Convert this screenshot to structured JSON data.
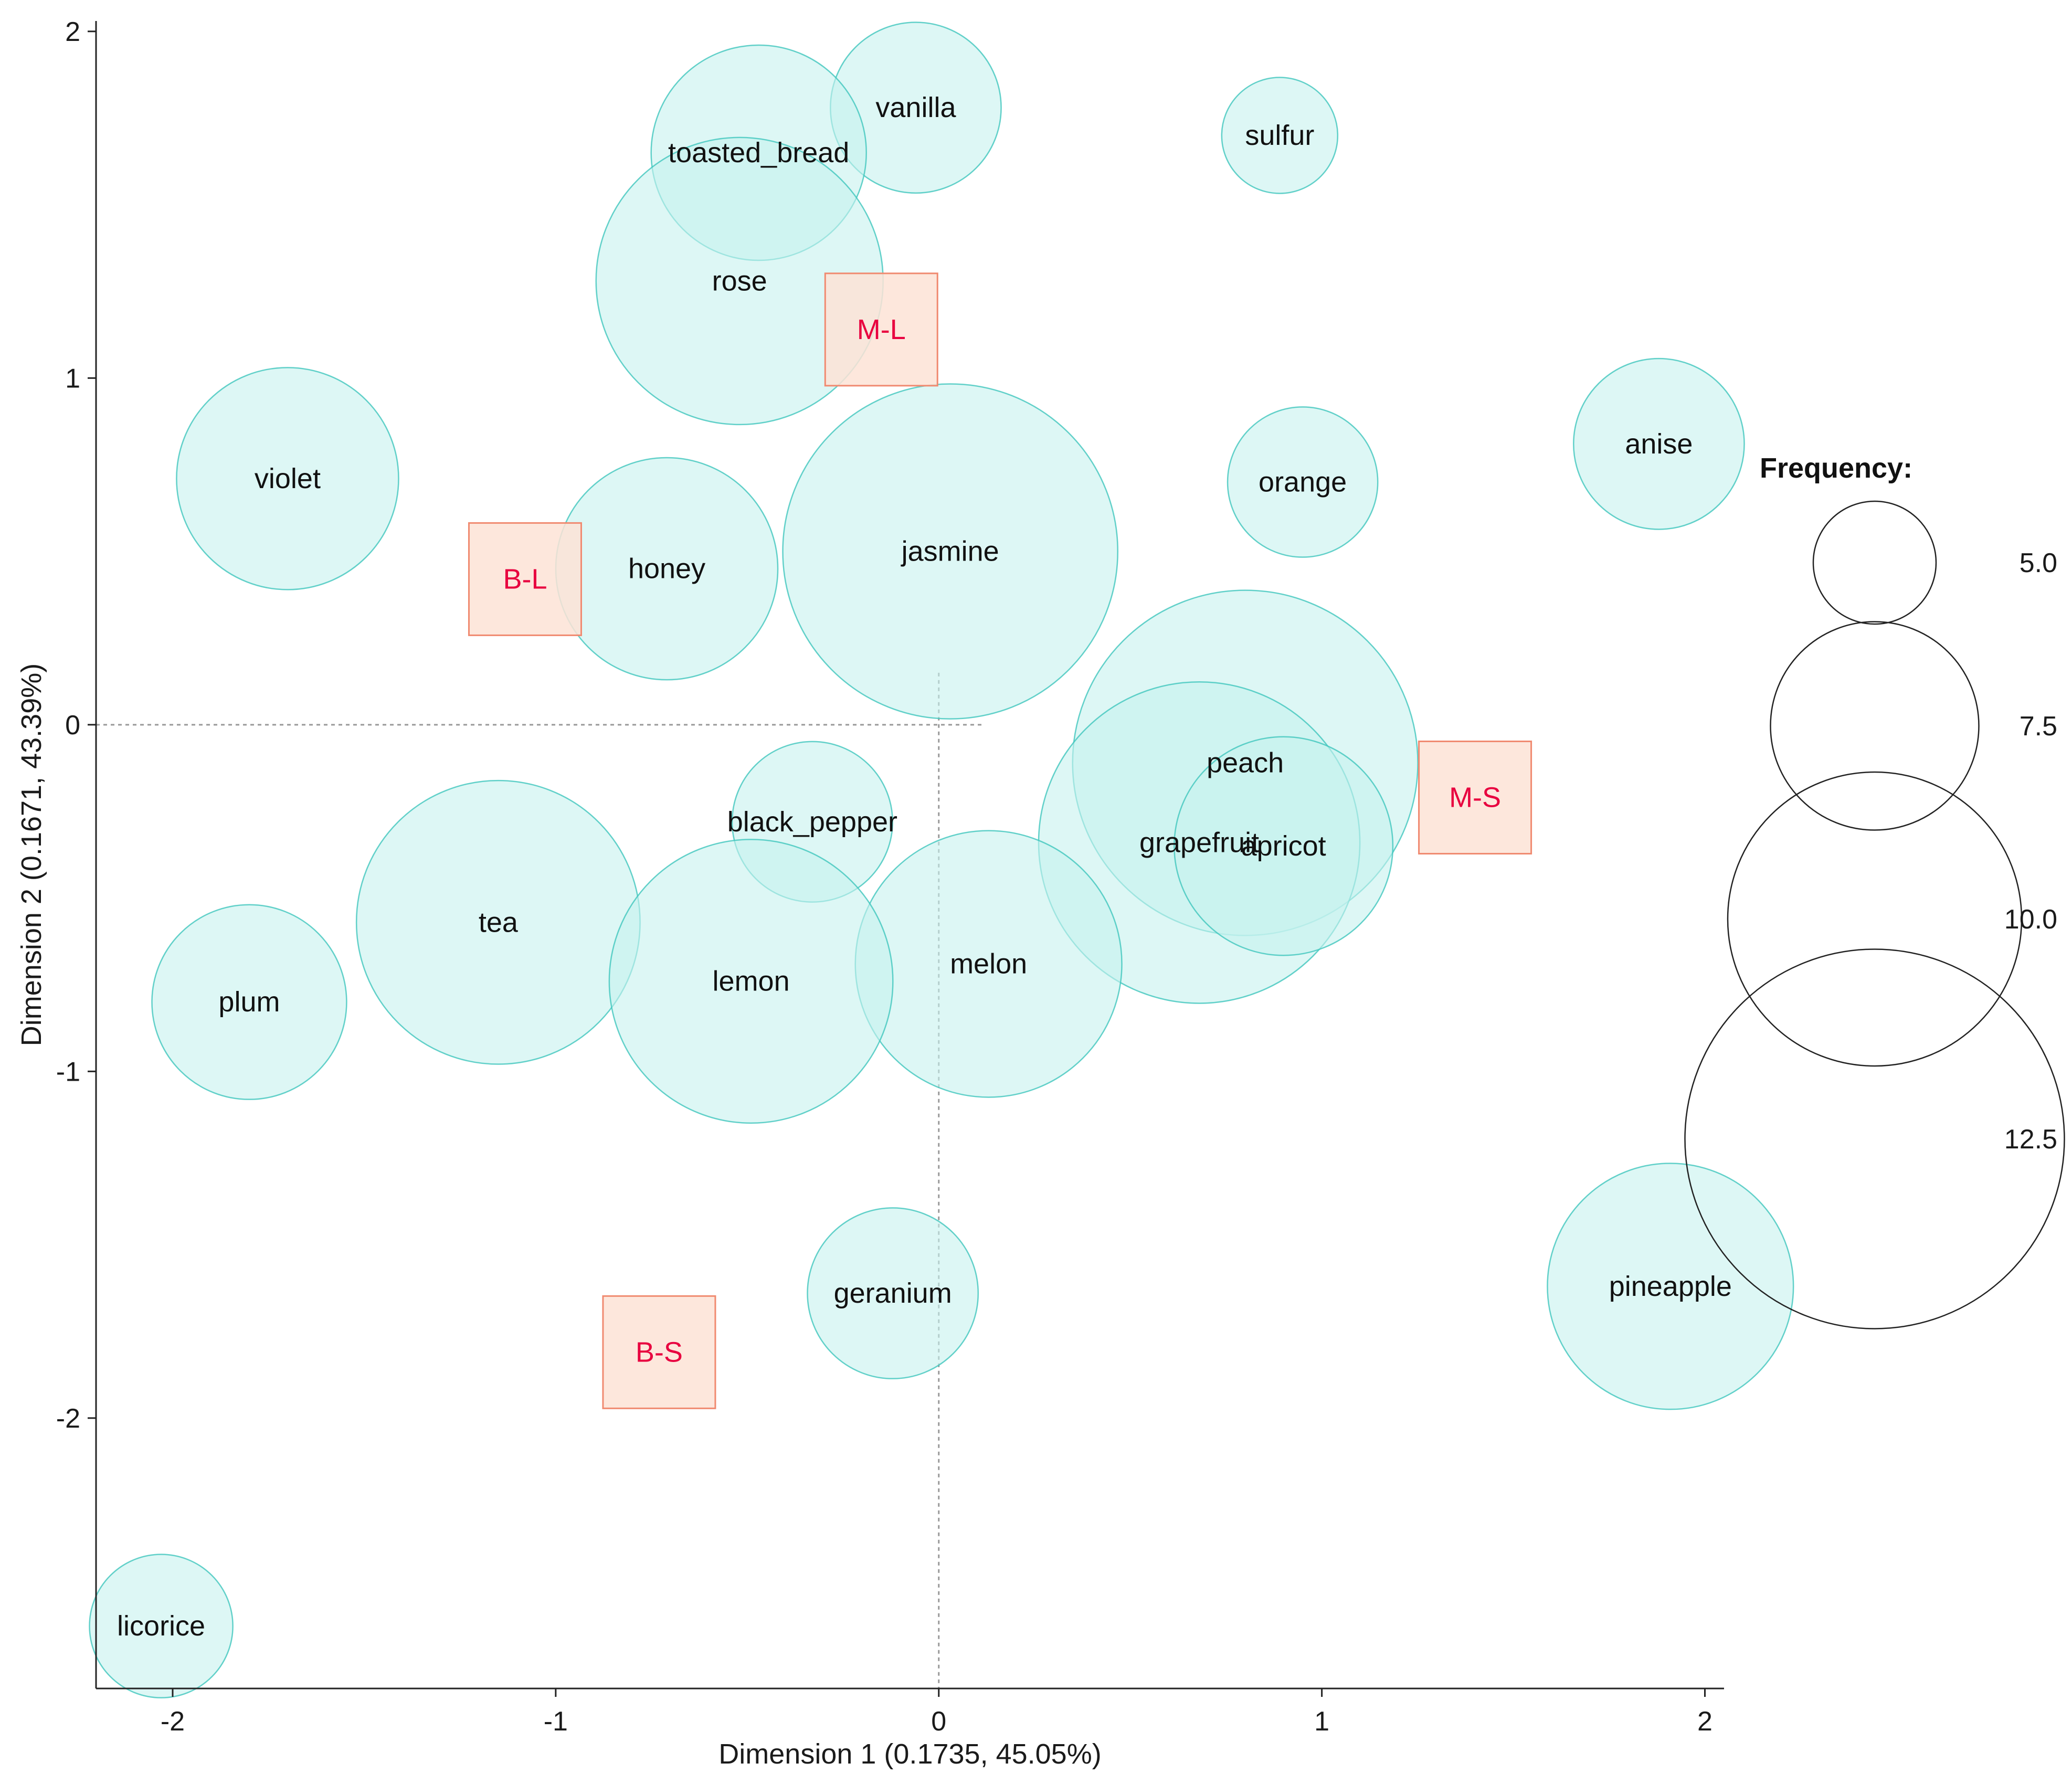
{
  "chart_data": {
    "type": "scatter",
    "subtype": "correspondence-analysis-bubble",
    "xlabel": "Dimension 1  (0.1735,  45.05%)",
    "ylabel": "Dimension 2  (0.1671,  43.39%)",
    "xlim": [
      -2.2,
      2.05
    ],
    "ylim": [
      -2.78,
      2.03
    ],
    "xticks": [
      -2,
      -1,
      0,
      1,
      2
    ],
    "yticks": [
      -2,
      -1,
      0,
      1,
      2
    ],
    "grid": false,
    "reference_lines": {
      "x": 0,
      "y": 0,
      "style": "dotted"
    },
    "colors": {
      "bubble_fill": "#c6f2ef",
      "bubble_stroke": "#3fc5bd",
      "square_fill": "#fde3d6",
      "square_stroke": "#f08a70",
      "square_text": "#e8003f",
      "axis": "#222222",
      "refline": "#999999",
      "legend_stroke": "#222222"
    },
    "bubbles": [
      {
        "label": "vanilla",
        "x": -0.06,
        "y": 1.78,
        "size": 6.4
      },
      {
        "label": "sulfur",
        "x": 0.89,
        "y": 1.7,
        "size": 4.8
      },
      {
        "label": "toasted_bread",
        "x": -0.47,
        "y": 1.65,
        "size": 7.7
      },
      {
        "label": "rose",
        "x": -0.52,
        "y": 1.28,
        "size": 9.8
      },
      {
        "label": "anise",
        "x": 1.88,
        "y": 0.81,
        "size": 6.4
      },
      {
        "label": "orange",
        "x": 0.95,
        "y": 0.7,
        "size": 5.8
      },
      {
        "label": "violet",
        "x": -1.7,
        "y": 0.71,
        "size": 7.9
      },
      {
        "label": "honey",
        "x": -0.71,
        "y": 0.45,
        "size": 7.9
      },
      {
        "label": "jasmine",
        "x": 0.03,
        "y": 0.5,
        "size": 11.2
      },
      {
        "label": "peach",
        "x": 0.8,
        "y": -0.11,
        "size": 11.5
      },
      {
        "label": "grapefruit",
        "x": 0.68,
        "y": -0.34,
        "size": 10.8
      },
      {
        "label": "apricot",
        "x": 0.9,
        "y": -0.35,
        "size": 7.8
      },
      {
        "label": "black_pepper",
        "x": -0.33,
        "y": -0.28,
        "size": 6.1
      },
      {
        "label": "tea",
        "x": -1.15,
        "y": -0.57,
        "size": 9.7
      },
      {
        "label": "melon",
        "x": 0.13,
        "y": -0.69,
        "size": 9.2
      },
      {
        "label": "lemon",
        "x": -0.49,
        "y": -0.74,
        "size": 9.7
      },
      {
        "label": "plum",
        "x": -1.8,
        "y": -0.8,
        "size": 7.1
      },
      {
        "label": "geranium",
        "x": -0.12,
        "y": -1.64,
        "size": 6.4
      },
      {
        "label": "pineapple",
        "x": 1.91,
        "y": -1.62,
        "size": 8.6
      },
      {
        "label": "licorice",
        "x": -2.03,
        "y": -2.6,
        "size": 5.6
      }
    ],
    "squares": [
      {
        "label": "M-L",
        "x": -0.15,
        "y": 1.14
      },
      {
        "label": "B-L",
        "x": -1.08,
        "y": 0.42
      },
      {
        "label": "M-S",
        "x": 1.4,
        "y": -0.21
      },
      {
        "label": "B-S",
        "x": -0.73,
        "y": -1.81
      }
    ],
    "legend": {
      "title": "Frequency:",
      "placement": "right",
      "entries": [
        {
          "value": 5.0,
          "label": "5.0"
        },
        {
          "value": 7.5,
          "label": "7.5"
        },
        {
          "value": 10.0,
          "label": "10.0"
        },
        {
          "value": 12.5,
          "label": "12.5"
        }
      ]
    }
  }
}
